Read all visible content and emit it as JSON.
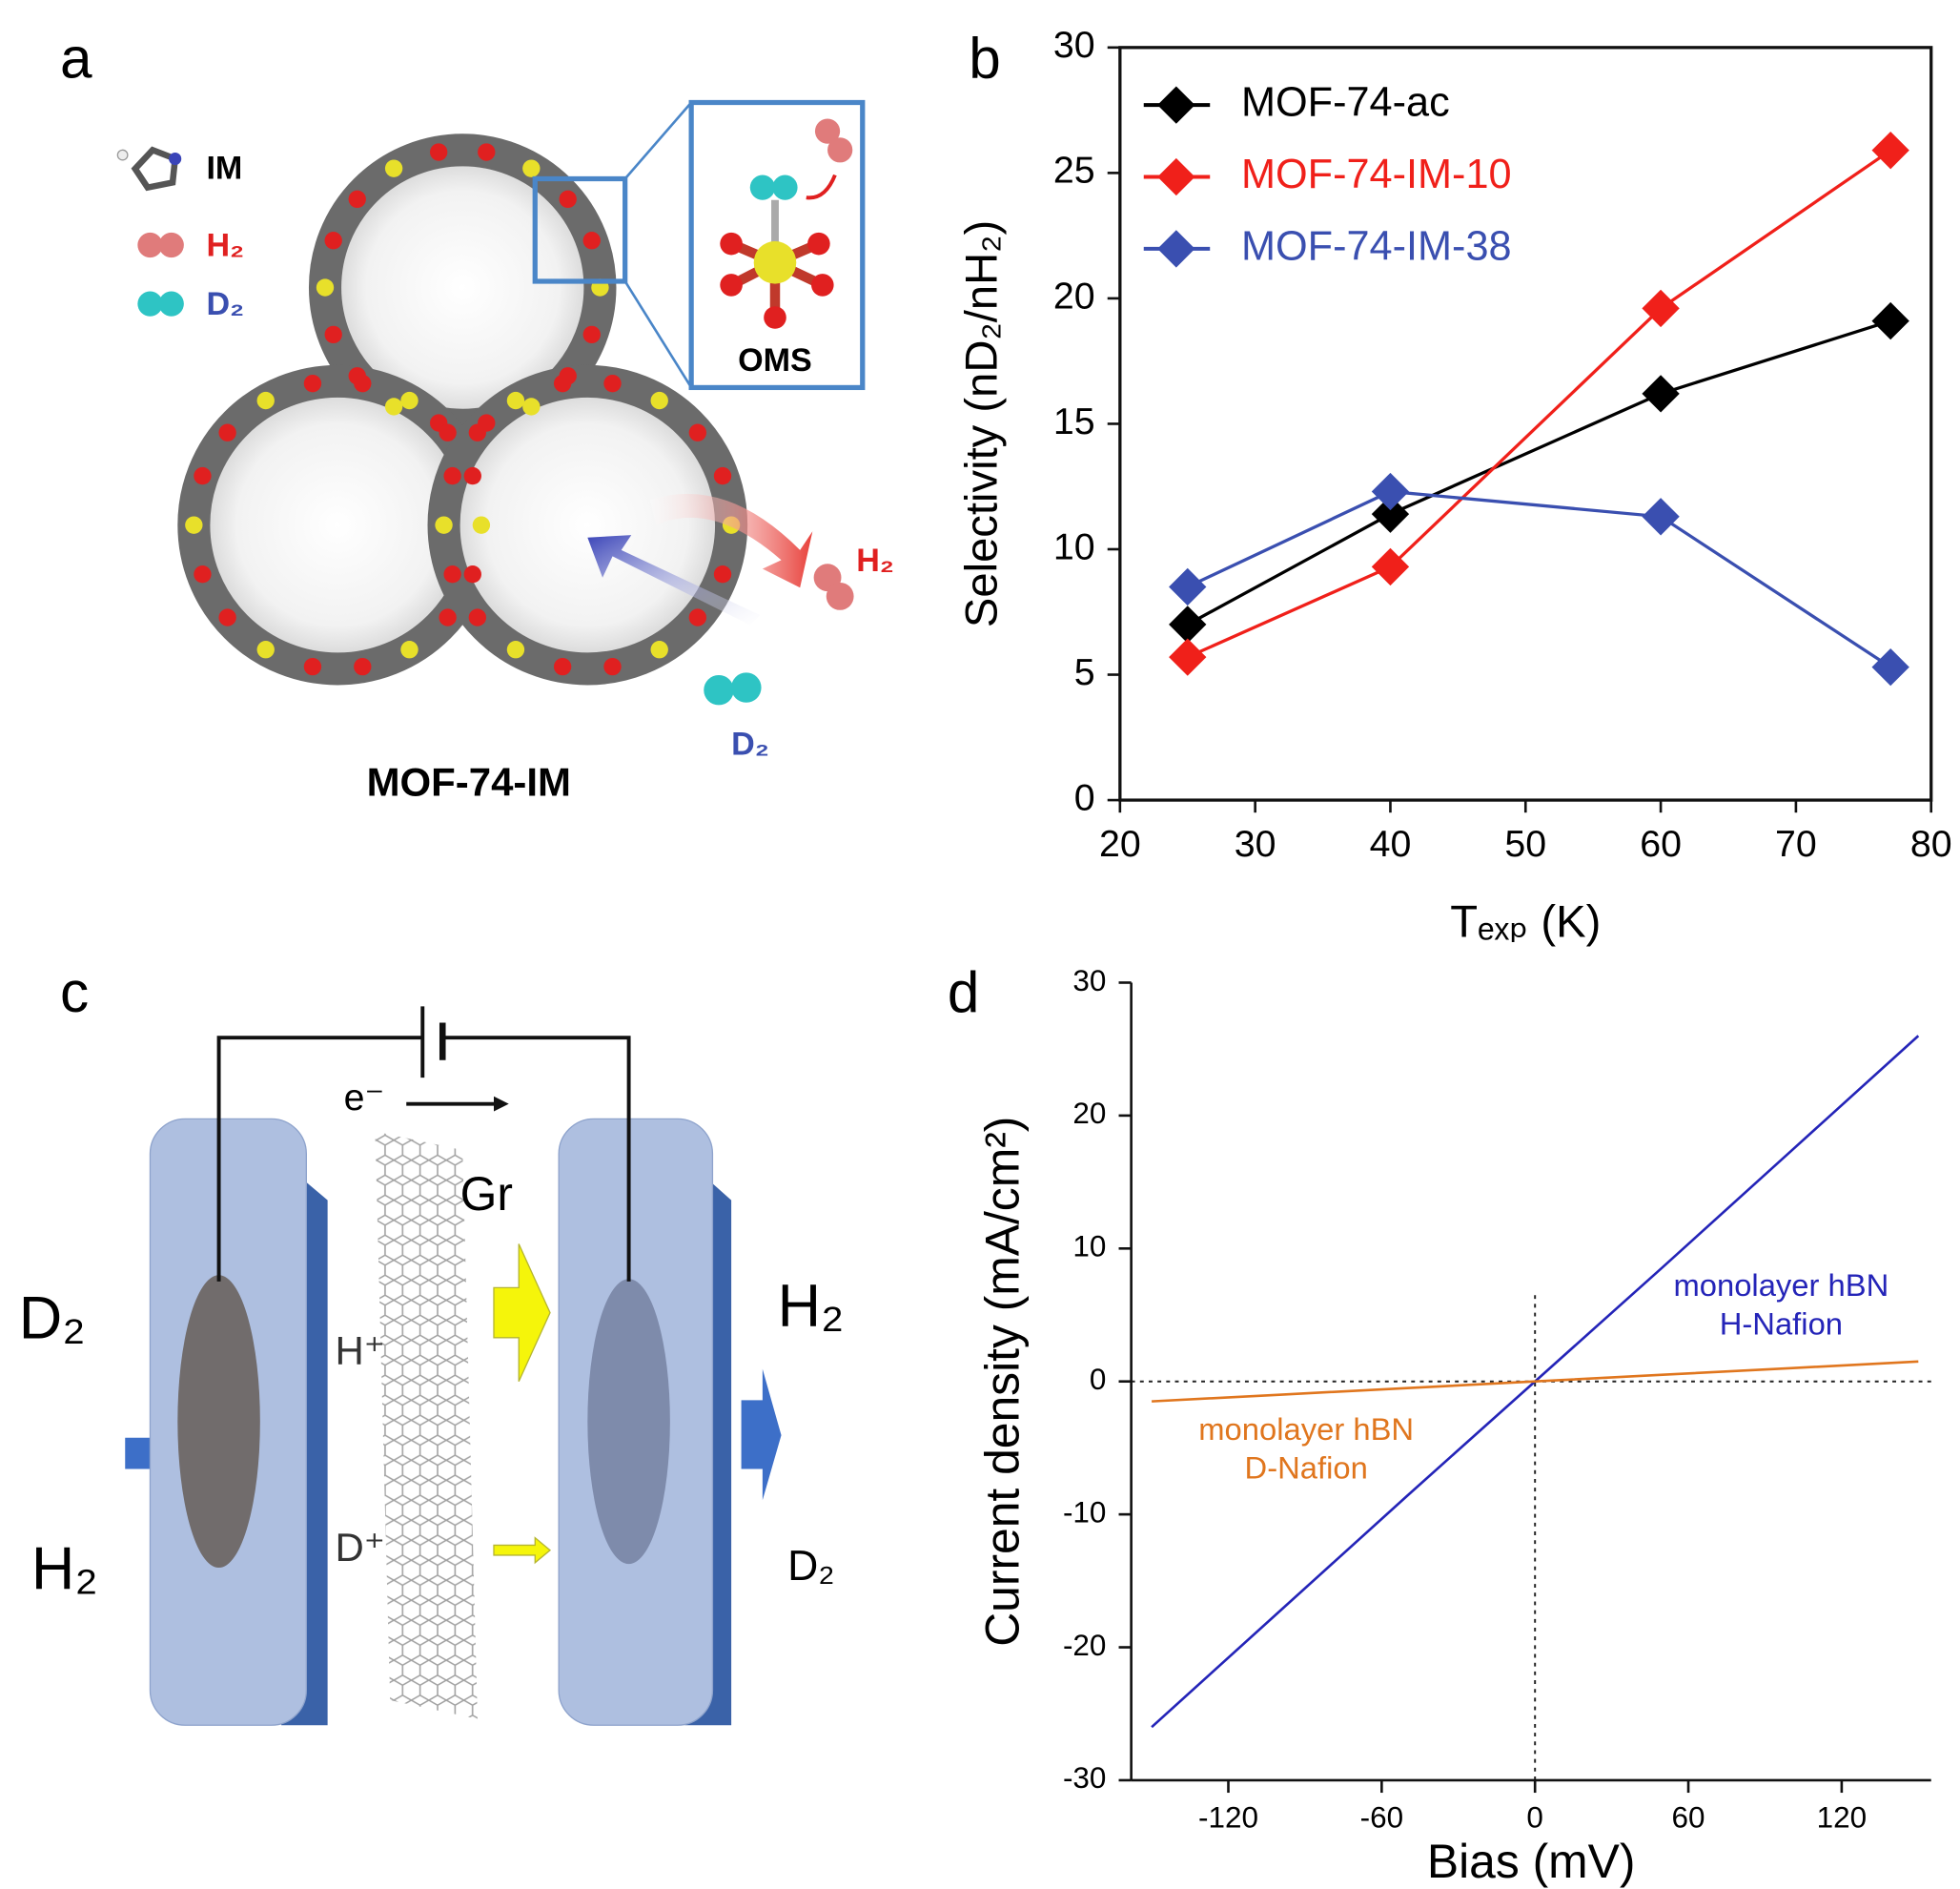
{
  "panel_labels": [
    "a",
    "b",
    "c",
    "d"
  ],
  "diagram_a": {
    "legend": [
      "IM",
      "H₂",
      "D₂"
    ],
    "inset": "OMS",
    "caption": "MOF-74-IM",
    "labels": [
      "H₂",
      "D₂"
    ]
  },
  "diagram_c": {
    "battery_label": "e⁻",
    "sheet": "Gr",
    "ions": [
      "H⁺",
      "D⁺"
    ],
    "inputs": [
      "D₂",
      "H₂"
    ],
    "outputs": [
      "H₂",
      "D₂"
    ]
  },
  "chart_data": [
    {
      "type": "line",
      "y_label": "Selectivity (nD₂/nH₂)",
      "x_label": "Tₑₓₚ (K)",
      "x": [
        25,
        40,
        60,
        77
      ],
      "series": [
        {
          "name": "MOF-74-ac",
          "color": "#000000",
          "values": [
            7.0,
            11.4,
            16.2,
            19.1
          ]
        },
        {
          "name": "MOF-74-IM-10",
          "color": "#f0201a",
          "values": [
            5.7,
            9.3,
            19.6,
            25.9
          ]
        },
        {
          "name": "MOF-74-IM-38",
          "color": "#3a4fb0",
          "values": [
            8.5,
            12.3,
            11.3,
            5.3
          ]
        }
      ],
      "marker": "diamond",
      "xlim": [
        20,
        80
      ],
      "xticks": [
        20,
        30,
        40,
        50,
        60,
        70,
        80
      ],
      "ylim": [
        0,
        30
      ],
      "yticks": [
        0,
        5,
        10,
        15,
        20,
        25,
        30
      ],
      "legend": "upper left",
      "frame": "box"
    },
    {
      "type": "line",
      "y_label": "Current density (mA/cm²)",
      "x_label": "Bias (mV)",
      "x": [
        -150,
        -100,
        -50,
        0,
        50,
        100,
        150
      ],
      "series": [
        {
          "name": "H-Nafion",
          "color": "#2424b8",
          "values": [
            -26,
            -17.3,
            -8.6,
            0,
            8.6,
            17.3,
            26
          ]
        },
        {
          "name": "D-Nafion",
          "color": "#e0761e",
          "values": [
            -1.5,
            -1,
            -0.5,
            0,
            0.5,
            1,
            1.5
          ]
        }
      ],
      "annotations": [
        {
          "lines": [
            "monolayer hBN",
            "H-Nafion"
          ],
          "color": "#2424b8"
        },
        {
          "lines": [
            "monolayer hBN",
            "D-Nafion"
          ],
          "color": "#e0761e"
        }
      ],
      "xlim": [
        -158,
        155
      ],
      "xticks": [
        -120,
        -60,
        0,
        60,
        120
      ],
      "ylim": [
        -30,
        30
      ],
      "yticks": [
        -30,
        -20,
        -10,
        0,
        10,
        20,
        30
      ],
      "reference_lines": [
        0,
        0
      ],
      "frame": "left-bottom"
    }
  ]
}
